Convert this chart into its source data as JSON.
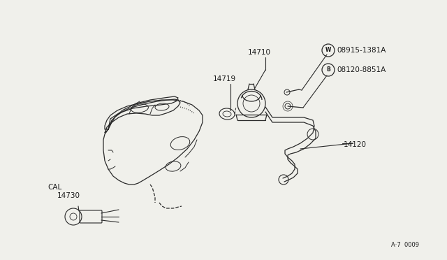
{
  "background_color": "#f0f0eb",
  "line_color": "#2a2a2a",
  "text_color": "#1a1a1a",
  "fig_width": 6.4,
  "fig_height": 3.72,
  "dpi": 100,
  "labels": {
    "W_label": "08915-1381A",
    "B_label": "08120-8851A",
    "diagram_id": "A·7  0009"
  }
}
